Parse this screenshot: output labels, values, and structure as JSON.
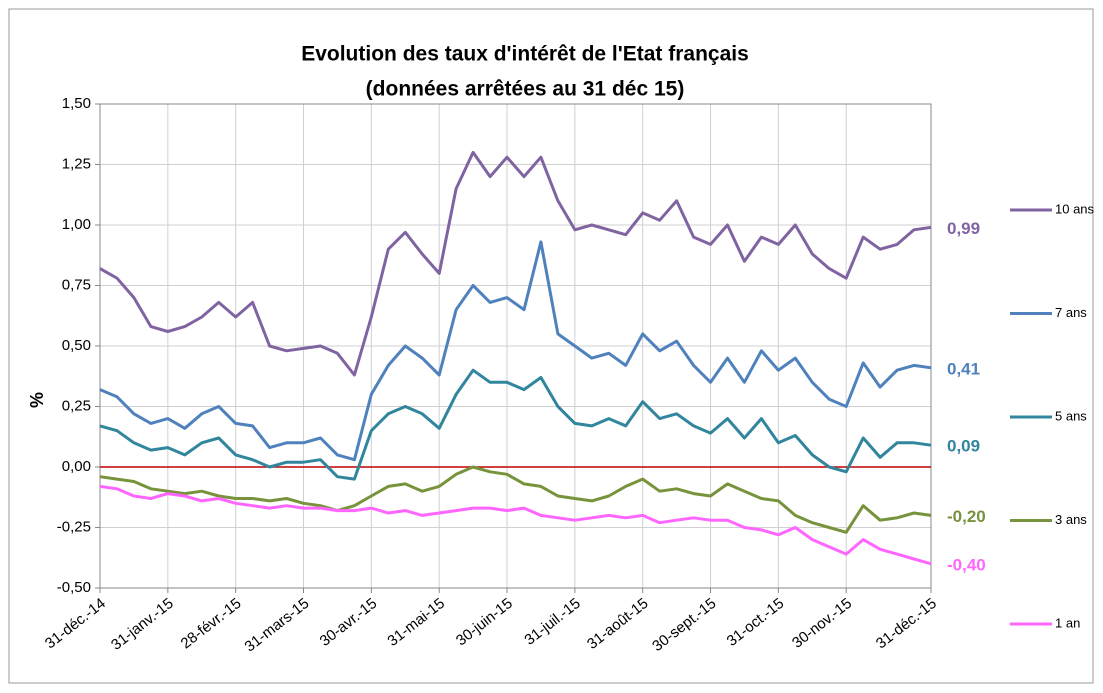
{
  "chart_data": {
    "type": "line",
    "title": "Evolution des taux d'intérêt de l'Etat français",
    "subtitle": "(données arrêtées au 31 déc 15)",
    "y_label": "%",
    "categories": [
      "31-déc.-14",
      null,
      null,
      null,
      "31-janv.-15",
      null,
      null,
      null,
      "28-févr.-15",
      null,
      null,
      null,
      "31-mars-15",
      null,
      null,
      null,
      "30-avr.-15",
      null,
      null,
      null,
      "31-mai-15",
      null,
      null,
      null,
      "30-juin-15",
      null,
      null,
      null,
      "31-juil.-15",
      null,
      null,
      null,
      "31-août-15",
      null,
      null,
      null,
      "30-sept.-15",
      null,
      null,
      null,
      "31-oct.-15",
      null,
      null,
      null,
      "30-nov.-15",
      null,
      null,
      null,
      null,
      "31-déc.-15"
    ],
    "ylim": [
      -0.5,
      1.5
    ],
    "yticks": [
      {
        "value": -0.5,
        "label": "-0,50"
      },
      {
        "value": -0.25,
        "label": "-0,25"
      },
      {
        "value": 0,
        "label": "0,00"
      },
      {
        "value": 0.25,
        "label": "0,25"
      },
      {
        "value": 0.5,
        "label": "0,50"
      },
      {
        "value": 0.75,
        "label": "0,75"
      },
      {
        "value": 1,
        "label": "1,00"
      },
      {
        "value": 1.25,
        "label": "1,25"
      },
      {
        "value": 1.5,
        "label": "1,50"
      }
    ],
    "grid": true,
    "zero_line_color": "#c00000",
    "series": [
      {
        "name": "10 ans",
        "color": "#8064a2",
        "values": [
          0.82,
          0.78,
          0.7,
          0.58,
          0.56,
          0.58,
          0.62,
          0.68,
          0.62,
          0.68,
          0.5,
          0.48,
          0.49,
          0.5,
          0.47,
          0.38,
          0.62,
          0.9,
          0.97,
          0.88,
          0.8,
          1.15,
          1.3,
          1.2,
          1.28,
          1.2,
          1.28,
          1.1,
          0.98,
          1.0,
          0.98,
          0.96,
          1.05,
          1.02,
          1.1,
          0.95,
          0.92,
          1.0,
          0.85,
          0.95,
          0.92,
          1.0,
          0.88,
          0.82,
          0.78,
          0.95,
          0.9,
          0.92,
          0.98,
          0.99
        ],
        "value_labels": [
          null,
          null,
          null,
          null,
          null,
          null,
          null,
          null,
          null,
          null,
          null,
          null,
          null,
          null,
          null,
          null,
          null,
          null,
          null,
          null,
          null,
          null,
          null,
          null,
          null,
          null,
          null,
          null,
          null,
          null,
          null,
          null,
          null,
          null,
          null,
          null,
          null,
          null,
          null,
          null,
          null,
          null,
          null,
          null,
          null,
          null,
          null,
          null,
          null,
          "0,99"
        ]
      },
      {
        "name": "7 ans",
        "color": "#4f81bd",
        "values": [
          0.32,
          0.29,
          0.22,
          0.18,
          0.2,
          0.16,
          0.22,
          0.25,
          0.18,
          0.17,
          0.08,
          0.1,
          0.1,
          0.12,
          0.05,
          0.03,
          0.3,
          0.42,
          0.5,
          0.45,
          0.38,
          0.65,
          0.75,
          0.68,
          0.7,
          0.65,
          0.93,
          0.55,
          0.5,
          0.45,
          0.47,
          0.42,
          0.55,
          0.48,
          0.52,
          0.42,
          0.35,
          0.45,
          0.35,
          0.48,
          0.4,
          0.45,
          0.35,
          0.28,
          0.25,
          0.43,
          0.33,
          0.4,
          0.42,
          0.41
        ],
        "value_labels": [
          null,
          null,
          null,
          null,
          null,
          null,
          null,
          null,
          null,
          null,
          null,
          null,
          null,
          null,
          null,
          null,
          null,
          null,
          null,
          null,
          null,
          null,
          null,
          null,
          null,
          null,
          null,
          null,
          null,
          null,
          null,
          null,
          null,
          null,
          null,
          null,
          null,
          null,
          null,
          null,
          null,
          null,
          null,
          null,
          null,
          null,
          null,
          null,
          null,
          "0,41"
        ]
      },
      {
        "name": "5 ans",
        "color": "#31859c",
        "values": [
          0.17,
          0.15,
          0.1,
          0.07,
          0.08,
          0.05,
          0.1,
          0.12,
          0.05,
          0.03,
          0.0,
          0.02,
          0.02,
          0.03,
          -0.04,
          -0.05,
          0.15,
          0.22,
          0.25,
          0.22,
          0.16,
          0.3,
          0.4,
          0.35,
          0.35,
          0.32,
          0.37,
          0.25,
          0.18,
          0.17,
          0.2,
          0.17,
          0.27,
          0.2,
          0.22,
          0.17,
          0.14,
          0.2,
          0.12,
          0.2,
          0.1,
          0.13,
          0.05,
          0.0,
          -0.02,
          0.12,
          0.04,
          0.1,
          0.1,
          0.09
        ],
        "value_labels": [
          null,
          null,
          null,
          null,
          null,
          null,
          null,
          null,
          null,
          null,
          null,
          null,
          null,
          null,
          null,
          null,
          null,
          null,
          null,
          null,
          null,
          null,
          null,
          null,
          null,
          null,
          null,
          null,
          null,
          null,
          null,
          null,
          null,
          null,
          null,
          null,
          null,
          null,
          null,
          null,
          null,
          null,
          null,
          null,
          null,
          null,
          null,
          null,
          null,
          "0,09"
        ]
      },
      {
        "name": "3 ans",
        "color": "#77933c",
        "values": [
          -0.04,
          -0.05,
          -0.06,
          -0.09,
          -0.1,
          -0.11,
          -0.1,
          -0.12,
          -0.13,
          -0.13,
          -0.14,
          -0.13,
          -0.15,
          -0.16,
          -0.18,
          -0.16,
          -0.12,
          -0.08,
          -0.07,
          -0.1,
          -0.08,
          -0.03,
          0.0,
          -0.02,
          -0.03,
          -0.07,
          -0.08,
          -0.12,
          -0.13,
          -0.14,
          -0.12,
          -0.08,
          -0.05,
          -0.1,
          -0.09,
          -0.11,
          -0.12,
          -0.07,
          -0.1,
          -0.13,
          -0.14,
          -0.2,
          -0.23,
          -0.25,
          -0.27,
          -0.16,
          -0.22,
          -0.21,
          -0.19,
          -0.2
        ],
        "value_labels": [
          null,
          null,
          null,
          null,
          null,
          null,
          null,
          null,
          null,
          null,
          null,
          null,
          null,
          null,
          null,
          null,
          null,
          null,
          null,
          null,
          null,
          null,
          null,
          null,
          null,
          null,
          null,
          null,
          null,
          null,
          null,
          null,
          null,
          null,
          null,
          null,
          null,
          null,
          null,
          null,
          null,
          null,
          null,
          null,
          null,
          null,
          null,
          null,
          null,
          "-0,20"
        ]
      },
      {
        "name": "1 an",
        "color": "#ff66ff",
        "values": [
          -0.08,
          -0.09,
          -0.12,
          -0.13,
          -0.11,
          -0.12,
          -0.14,
          -0.13,
          -0.15,
          -0.16,
          -0.17,
          -0.16,
          -0.17,
          -0.17,
          -0.18,
          -0.18,
          -0.17,
          -0.19,
          -0.18,
          -0.2,
          -0.19,
          -0.18,
          -0.17,
          -0.17,
          -0.18,
          -0.17,
          -0.2,
          -0.21,
          -0.22,
          -0.21,
          -0.2,
          -0.21,
          -0.2,
          -0.23,
          -0.22,
          -0.21,
          -0.22,
          -0.22,
          -0.25,
          -0.26,
          -0.28,
          -0.25,
          -0.3,
          -0.33,
          -0.36,
          -0.3,
          -0.34,
          -0.36,
          -0.38,
          -0.4
        ],
        "value_labels": [
          null,
          null,
          null,
          null,
          null,
          null,
          null,
          null,
          null,
          null,
          null,
          null,
          null,
          null,
          null,
          null,
          null,
          null,
          null,
          null,
          null,
          null,
          null,
          null,
          null,
          null,
          null,
          null,
          null,
          null,
          null,
          null,
          null,
          null,
          null,
          null,
          null,
          null,
          null,
          null,
          null,
          null,
          null,
          null,
          null,
          null,
          null,
          null,
          null,
          "-0,40"
        ]
      }
    ]
  }
}
